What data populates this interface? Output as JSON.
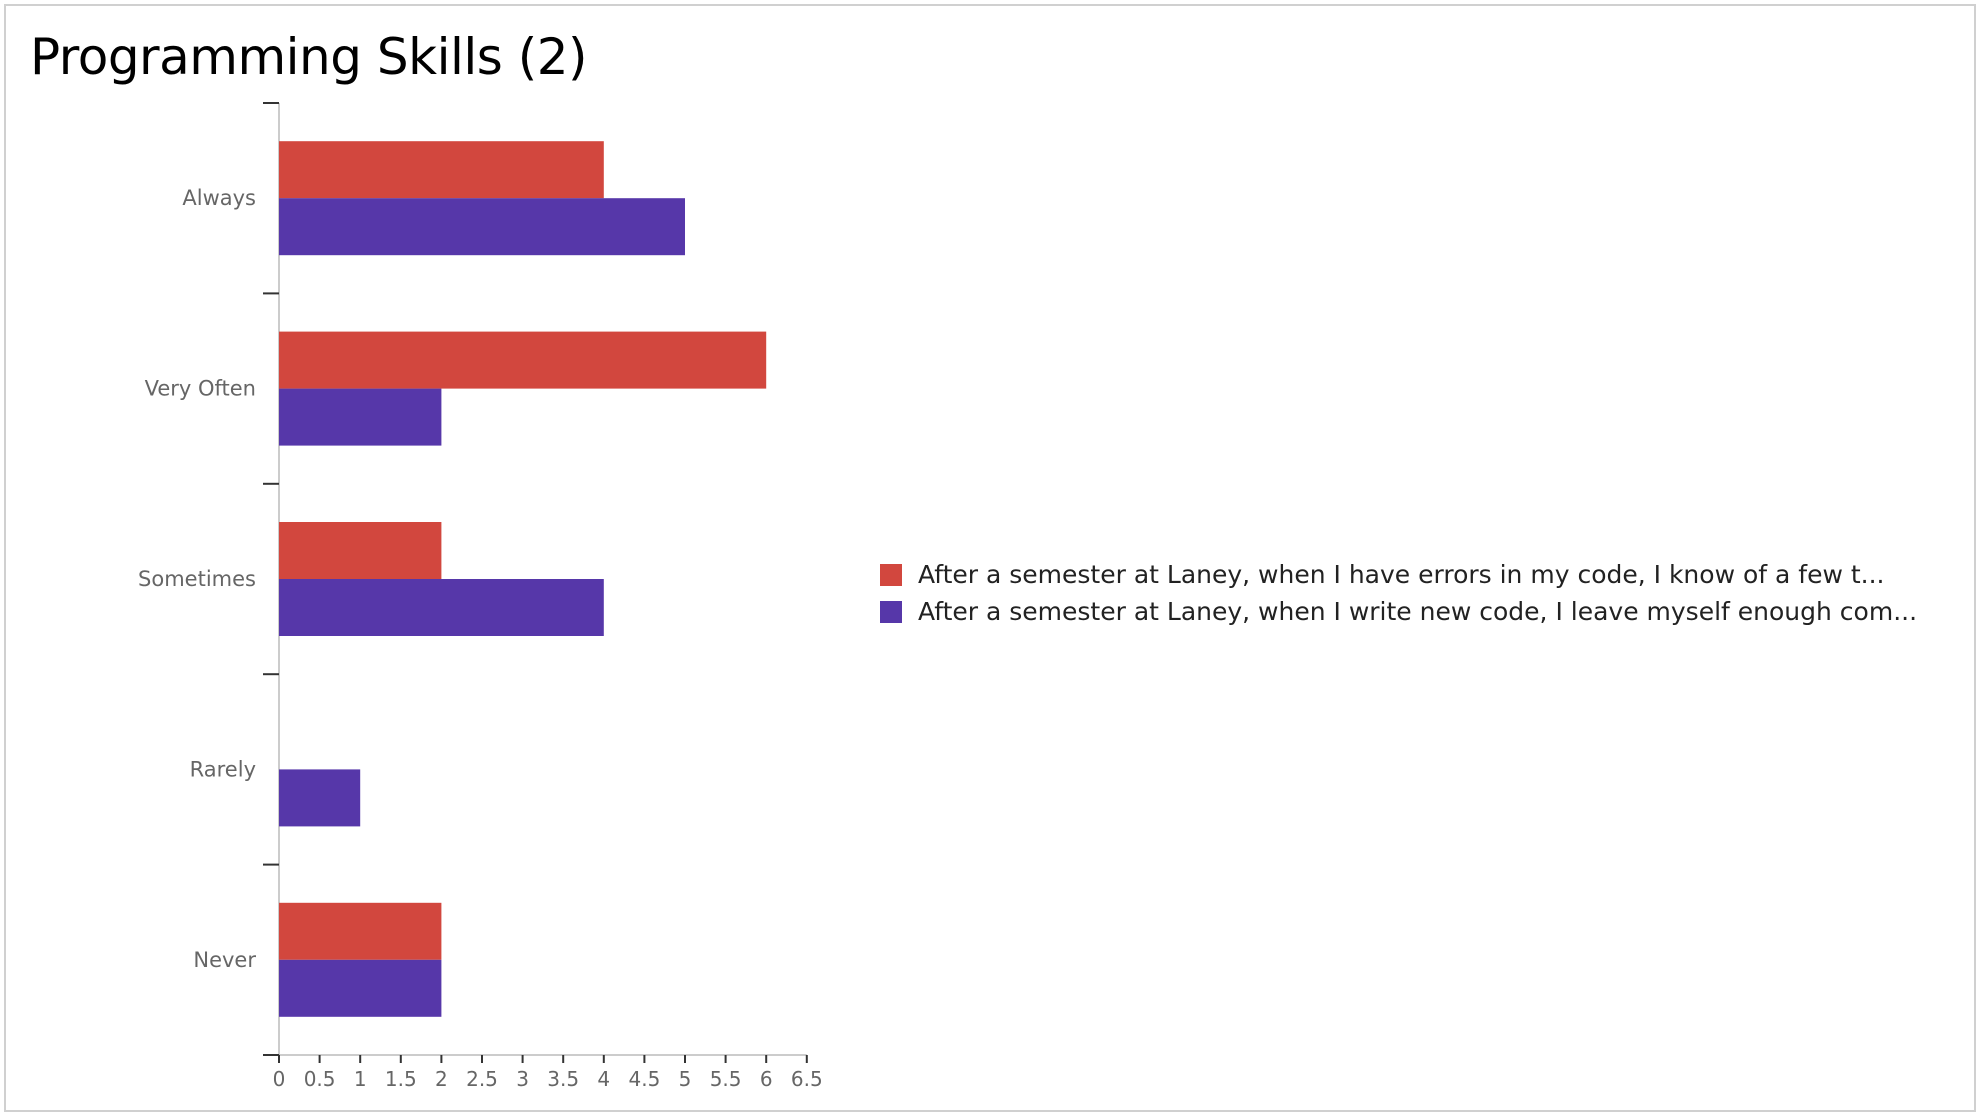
{
  "title": "Programming Skills (2)",
  "chart_data": {
    "type": "bar",
    "orientation": "horizontal",
    "categories": [
      "Always",
      "Very Often",
      "Sometimes",
      "Rarely",
      "Never"
    ],
    "series": [
      {
        "name": "After a semester at Laney, when I have errors in my code, I know of a few t...",
        "color": "#d2473e",
        "values": [
          4,
          6,
          2,
          0,
          2
        ]
      },
      {
        "name": "After a semester at Laney, when I write new code, I leave myself enough com...",
        "color": "#5637a9",
        "values": [
          5,
          2,
          4,
          1,
          2
        ]
      }
    ],
    "x_ticks": [
      "0",
      "0.5",
      "1",
      "1.5",
      "2",
      "2.5",
      "3",
      "3.5",
      "4",
      "4.5",
      "5",
      "5.5",
      "6",
      "6.5"
    ],
    "xlim": [
      0,
      6.5
    ],
    "grid": false,
    "legend_position": "right"
  }
}
